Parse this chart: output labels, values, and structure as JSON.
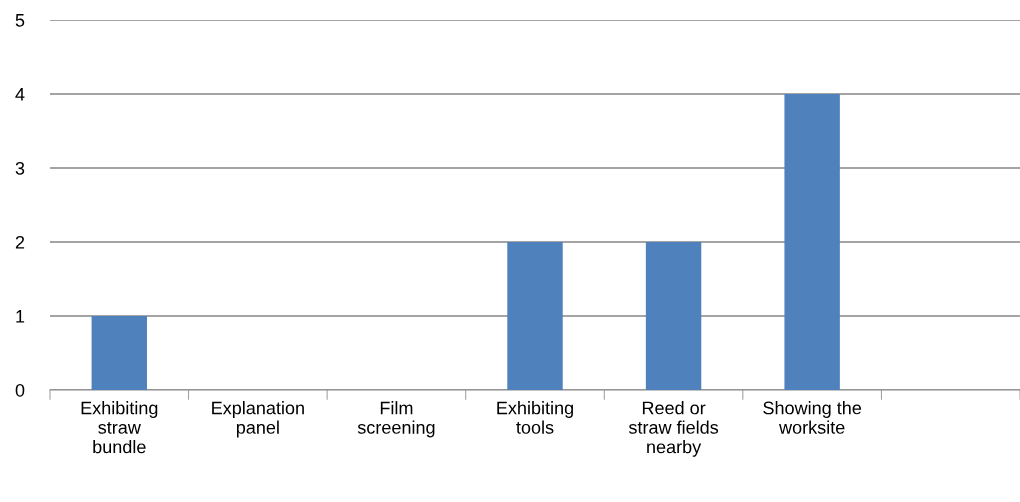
{
  "chart_data": {
    "type": "bar",
    "categories": [
      "Exhibiting\nstraw\nbundle",
      "Explanation\npanel",
      "Film\nscreening",
      "Exhibiting\ntools",
      "Reed or\nstraw fields\nnearby",
      "Showing the\nworksite",
      null
    ],
    "values": [
      1,
      0,
      0,
      2,
      2,
      4,
      0
    ],
    "color": "#4f81bd",
    "ylim": [
      0,
      5
    ],
    "yticks": [
      0,
      1,
      2,
      3,
      4,
      5
    ],
    "grid": "y",
    "legend": false
  }
}
